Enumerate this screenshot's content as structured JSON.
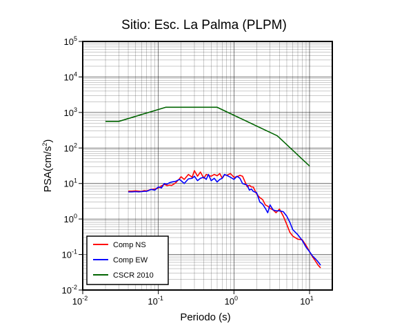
{
  "chart_data": {
    "type": "line",
    "title": "Sitio: Esc. La Palma (PLPM)",
    "xlabel": "Periodo (s)",
    "ylabel": "PSA(cm/s",
    "ylabel_sup": "2",
    "ylabel_tail": ")",
    "x_scale": "log",
    "y_scale": "log",
    "xlim": [
      0.01,
      20
    ],
    "ylim": [
      0.01,
      100000
    ],
    "grid": true,
    "legend_position": "bottom-left",
    "x_ticks": [
      {
        "base": "10",
        "exp": "-2",
        "value": 0.01
      },
      {
        "base": "10",
        "exp": "-1",
        "value": 0.1
      },
      {
        "base": "10",
        "exp": "0",
        "value": 1
      },
      {
        "base": "10",
        "exp": "1",
        "value": 10
      }
    ],
    "y_ticks": [
      {
        "base": "10",
        "exp": "-2",
        "value": 0.01
      },
      {
        "base": "10",
        "exp": "-1",
        "value": 0.1
      },
      {
        "base": "10",
        "exp": "0",
        "value": 1
      },
      {
        "base": "10",
        "exp": "1",
        "value": 10
      },
      {
        "base": "10",
        "exp": "2",
        "value": 100
      },
      {
        "base": "10",
        "exp": "3",
        "value": 1000
      },
      {
        "base": "10",
        "exp": "4",
        "value": 10000
      },
      {
        "base": "10",
        "exp": "5",
        "value": 100000
      }
    ],
    "series": [
      {
        "name": "Comp NS",
        "color": "#ff0000",
        "x": [
          0.04,
          0.045,
          0.05,
          0.055,
          0.06,
          0.065,
          0.07,
          0.075,
          0.08,
          0.09,
          0.1,
          0.11,
          0.12,
          0.13,
          0.14,
          0.15,
          0.17,
          0.19,
          0.2,
          0.22,
          0.25,
          0.28,
          0.3,
          0.33,
          0.36,
          0.4,
          0.43,
          0.46,
          0.5,
          0.55,
          0.6,
          0.65,
          0.7,
          0.75,
          0.8,
          0.9,
          1.0,
          1.1,
          1.2,
          1.3,
          1.5,
          1.6,
          1.7,
          1.8,
          2.0,
          2.2,
          2.4,
          2.6,
          2.8,
          3.0,
          3.3,
          3.6,
          4.0,
          4.5,
          5.0,
          5.5,
          6.0,
          7.0,
          8.0,
          9.0,
          10.0,
          11.0,
          12.0,
          13.0,
          14.0
        ],
        "y": [
          6.1,
          6.1,
          6.2,
          6.1,
          6.0,
          6.3,
          6.2,
          6.5,
          6.8,
          7.0,
          7.5,
          8.5,
          9.5,
          8.7,
          9.0,
          8.8,
          10.5,
          13.5,
          15.5,
          13.0,
          18.0,
          15.0,
          23.0,
          16.0,
          21.0,
          14.0,
          18.0,
          17.0,
          16.0,
          18.0,
          16.5,
          19.0,
          14.0,
          17.5,
          17.0,
          19.0,
          15.0,
          15.5,
          17.0,
          16.0,
          8.0,
          9.0,
          8.0,
          8.0,
          5.0,
          4.0,
          3.5,
          2.5,
          2.3,
          2.0,
          1.8,
          1.5,
          1.9,
          1.2,
          0.7,
          0.42,
          0.33,
          0.27,
          0.26,
          0.18,
          0.12,
          0.085,
          0.065,
          0.05,
          0.042
        ]
      },
      {
        "name": "Comp EW",
        "color": "#0000ff",
        "x": [
          0.04,
          0.045,
          0.05,
          0.055,
          0.06,
          0.065,
          0.07,
          0.075,
          0.08,
          0.09,
          0.1,
          0.11,
          0.12,
          0.13,
          0.14,
          0.15,
          0.17,
          0.19,
          0.2,
          0.22,
          0.25,
          0.28,
          0.3,
          0.33,
          0.36,
          0.4,
          0.43,
          0.46,
          0.5,
          0.55,
          0.6,
          0.65,
          0.7,
          0.75,
          0.8,
          0.9,
          1.0,
          1.1,
          1.2,
          1.3,
          1.5,
          1.6,
          1.7,
          1.8,
          2.0,
          2.2,
          2.4,
          2.6,
          2.8,
          3.0,
          3.3,
          3.6,
          4.0,
          4.5,
          5.0,
          5.5,
          6.0,
          7.0,
          8.0,
          9.0,
          10.0,
          11.0,
          12.0,
          13.0,
          14.0
        ],
        "y": [
          5.8,
          5.8,
          5.9,
          5.8,
          5.9,
          6.0,
          6.0,
          6.4,
          6.8,
          6.5,
          8.0,
          7.5,
          10.0,
          9.5,
          10.5,
          11.0,
          11.5,
          13.0,
          12.0,
          10.0,
          13.5,
          14.0,
          16.0,
          12.0,
          14.0,
          15.0,
          13.0,
          18.0,
          12.0,
          14.0,
          11.0,
          13.0,
          14.0,
          18.0,
          17.0,
          15.0,
          13.0,
          16.0,
          14.0,
          10.0,
          9.0,
          6.5,
          7.0,
          6.0,
          5.5,
          3.0,
          2.6,
          2.0,
          1.5,
          2.5,
          1.8,
          1.7,
          1.7,
          1.6,
          1.2,
          0.8,
          0.5,
          0.36,
          0.25,
          0.16,
          0.12,
          0.09,
          0.075,
          0.062,
          0.05
        ]
      },
      {
        "name": "CSCR 2010",
        "color": "#006400",
        "x": [
          0.02,
          0.03,
          0.125,
          0.6,
          3.75,
          10.0
        ],
        "y": [
          560,
          560,
          1400,
          1400,
          220,
          31
        ]
      }
    ]
  }
}
